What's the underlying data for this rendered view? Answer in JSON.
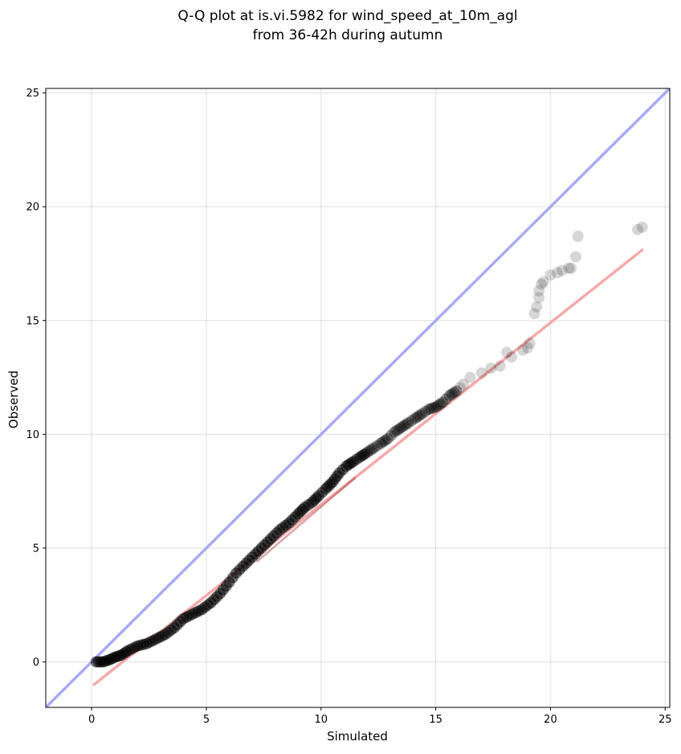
{
  "chart_data": {
    "type": "scatter",
    "title_line1": "Q-Q plot at is.vi.5982 for wind_speed_at_10m_agl",
    "title_line2": "from 36-42h during autumn",
    "xlabel": "Simulated",
    "ylabel": "Observed",
    "xlim": [
      -2.0,
      25.2
    ],
    "ylim": [
      -2.0,
      25.2
    ],
    "xticks": [
      "0",
      "5",
      "10",
      "15",
      "20",
      "25"
    ],
    "yticks": [
      "0",
      "5",
      "10",
      "15",
      "20",
      "25"
    ],
    "grid": true,
    "colors": {
      "identity_line": "#a9aaf5",
      "fit_line": "#f5a9aa",
      "points": "#000000",
      "fit_overlay": "#8b0000"
    },
    "identity_line": {
      "x": [
        -2.0,
        25.2
      ],
      "y": [
        -2.0,
        25.2
      ]
    },
    "fit_line": {
      "x": [
        0.1,
        24.0
      ],
      "y": [
        -1.0,
        18.1
      ]
    },
    "quantiles": {
      "x": [
        0.2,
        0.5,
        0.8,
        1.0,
        1.3,
        1.6,
        2.0,
        2.4,
        2.8,
        3.2,
        3.6,
        4.0,
        4.4,
        4.8,
        5.2,
        5.6,
        6.0,
        6.3,
        6.6,
        7.0,
        7.4,
        7.8,
        8.2,
        8.6,
        9.0,
        9.3,
        9.6,
        9.9,
        10.2,
        10.5,
        10.8,
        11.1,
        11.4,
        11.7,
        12.0,
        12.3,
        12.6,
        12.9,
        13.2,
        13.5,
        13.8,
        14.1,
        14.4,
        14.7,
        15.0,
        15.3,
        15.6,
        15.9,
        16.2,
        16.5,
        17.0,
        17.4,
        17.8,
        18.1,
        18.3,
        18.8,
        19.0,
        19.1,
        19.3,
        19.4,
        19.5,
        19.5,
        19.6,
        19.7,
        20.0,
        20.3,
        20.5,
        20.8,
        20.9,
        21.1,
        21.2,
        23.8,
        24.0
      ],
      "y": [
        0.0,
        0.0,
        0.1,
        0.2,
        0.3,
        0.5,
        0.7,
        0.8,
        1.0,
        1.2,
        1.5,
        1.9,
        2.1,
        2.3,
        2.6,
        3.0,
        3.5,
        3.9,
        4.2,
        4.6,
        5.0,
        5.4,
        5.8,
        6.1,
        6.5,
        6.8,
        7.0,
        7.3,
        7.6,
        7.9,
        8.3,
        8.6,
        8.8,
        9.0,
        9.2,
        9.4,
        9.6,
        9.8,
        10.1,
        10.3,
        10.5,
        10.7,
        10.9,
        11.1,
        11.2,
        11.4,
        11.7,
        11.9,
        12.2,
        12.5,
        12.7,
        12.9,
        13.0,
        13.6,
        13.4,
        13.7,
        13.8,
        14.0,
        15.3,
        15.6,
        16.0,
        16.3,
        16.6,
        16.7,
        17.0,
        17.1,
        17.2,
        17.3,
        17.3,
        17.8,
        18.7,
        19.0,
        19.1
      ]
    }
  }
}
